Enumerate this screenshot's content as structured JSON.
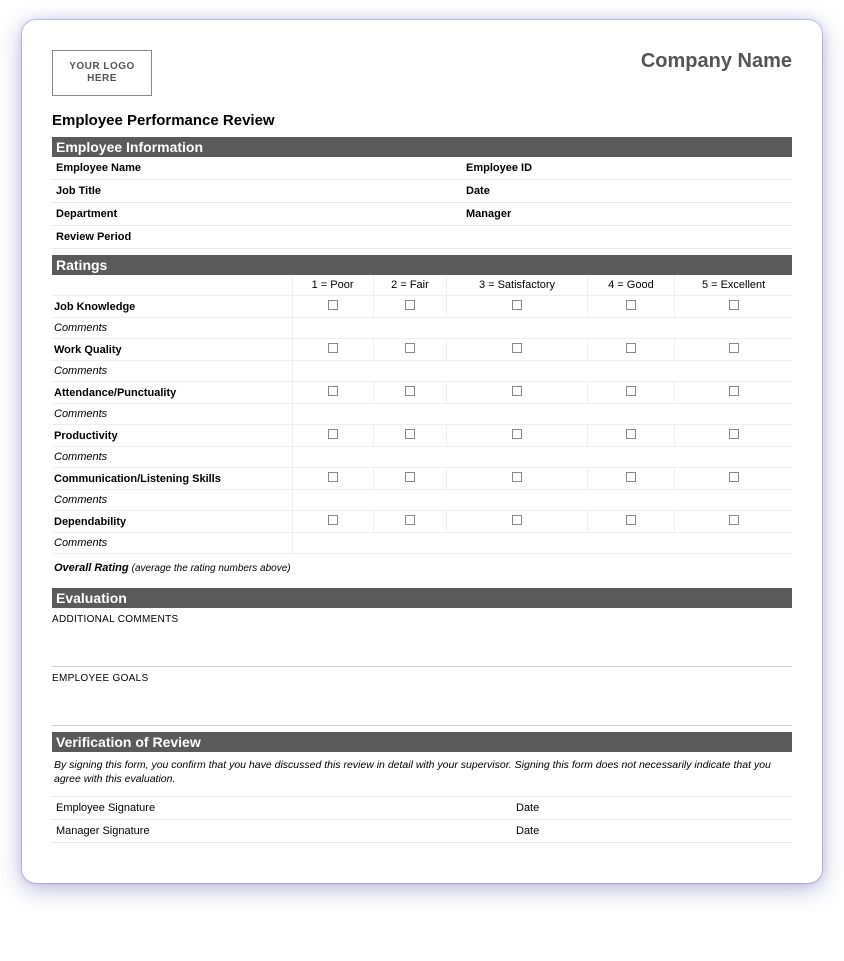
{
  "colors": {
    "section_bar_bg": "#5a5a5a",
    "section_bar_text": "#ffffff",
    "border_light": "#e8e8e8",
    "text_muted": "#555555",
    "page_bg": "#ffffff"
  },
  "header": {
    "logo_text": "YOUR LOGO HERE",
    "company_name": "Company Name"
  },
  "doc_title": "Employee Performance Review",
  "employee_info": {
    "section_title": "Employee Information",
    "fields": {
      "employee_name": {
        "label": "Employee Name",
        "value": ""
      },
      "employee_id": {
        "label": "Employee ID",
        "value": ""
      },
      "job_title": {
        "label": "Job Title",
        "value": ""
      },
      "date": {
        "label": "Date",
        "value": ""
      },
      "department": {
        "label": "Department",
        "value": ""
      },
      "manager": {
        "label": "Manager",
        "value": ""
      },
      "review_period": {
        "label": "Review Period",
        "value": ""
      }
    }
  },
  "ratings": {
    "section_title": "Ratings",
    "scale": [
      "1 = Poor",
      "2 = Fair",
      "3 = Satisfactory",
      "4 = Good",
      "5 = Excellent"
    ],
    "comments_label": "Comments",
    "categories": [
      "Job Knowledge",
      "Work Quality",
      "Attendance/Punctuality",
      "Productivity",
      "Communication/Listening Skills",
      "Dependability"
    ],
    "overall_label": "Overall Rating",
    "overall_hint": "(average the rating numbers above)"
  },
  "evaluation": {
    "section_title": "Evaluation",
    "additional_comments_label": "ADDITIONAL COMMENTS",
    "employee_goals_label": "EMPLOYEE GOALS"
  },
  "verification": {
    "section_title": "Verification of Review",
    "statement": "By signing this form, you confirm that you have discussed this review in detail with your supervisor. Signing this form does not necessarily indicate that you agree with this evaluation.",
    "rows": {
      "employee_signature": {
        "label": "Employee Signature",
        "date_label": "Date"
      },
      "manager_signature": {
        "label": "Manager Signature",
        "date_label": "Date"
      }
    }
  }
}
